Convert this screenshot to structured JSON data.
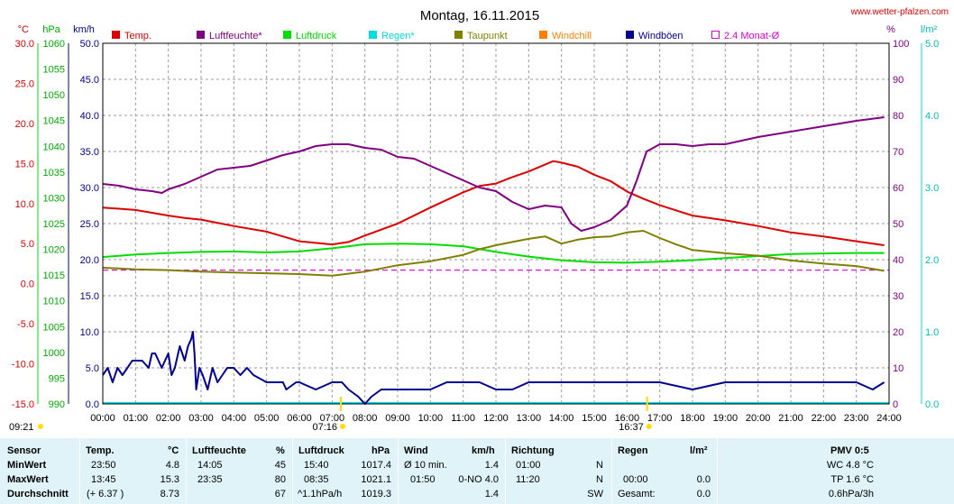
{
  "title": "Montag, 16.11.2015",
  "website": "www.wetter-pfalzen.com",
  "axis_units": {
    "temp": "°C",
    "pressure": "hPa",
    "wind": "km/h",
    "humidity": "%",
    "rain": "l/m²"
  },
  "axes": {
    "temp_ticks": [
      "30.0",
      "25.0",
      "20.0",
      "15.0",
      "10.0",
      "5.0",
      "0.0",
      "-5.0",
      "-10.0",
      "-15.0"
    ],
    "pressure_ticks": [
      "1060",
      "1055",
      "1050",
      "1045",
      "1040",
      "1035",
      "1030",
      "1025",
      "1020",
      "1015",
      "1010",
      "1005",
      "1000",
      "995",
      "990"
    ],
    "wind_ticks": [
      "50.0",
      "45.0",
      "40.0",
      "35.0",
      "30.0",
      "25.0",
      "20.0",
      "15.0",
      "10.0",
      "5.0",
      "0.0"
    ],
    "humidity_ticks": [
      "100",
      "90",
      "80",
      "70",
      "60",
      "50",
      "40",
      "30",
      "20",
      "10",
      "0"
    ],
    "rain_ticks": [
      "5.0",
      "4.0",
      "3.0",
      "2.0",
      "1.0",
      "0.0"
    ],
    "time_ticks": [
      "00:00",
      "01:00",
      "02:00",
      "03:00",
      "04:00",
      "05:00",
      "06:00",
      "07:00",
      "08:00",
      "09:00",
      "10:00",
      "11:00",
      "12:00",
      "13:00",
      "14:00",
      "15:00",
      "16:00",
      "17:00",
      "18:00",
      "19:00",
      "20:00",
      "21:00",
      "22:00",
      "23:00",
      "24:00"
    ]
  },
  "sun": {
    "moonrise": "09:21",
    "sunrise": "07:16",
    "sunset": "16:37"
  },
  "colors": {
    "temp": "#dd0000",
    "humidity": "#800080",
    "pressure": "#00dd00",
    "rain": "#00dddd",
    "dewpoint": "#808000",
    "windchill": "#ff8000",
    "gust": "#000090",
    "avg": "#dd00dd",
    "summary_bg": "#dff3f8"
  },
  "legend": [
    {
      "label": "Temp.",
      "color": "#dd0000",
      "type": "box"
    },
    {
      "label": "Luftfeuchte*",
      "color": "#800080",
      "type": "box"
    },
    {
      "label": "Luftdruck",
      "color": "#00dd00",
      "type": "box"
    },
    {
      "label": "Regen*",
      "color": "#00dddd",
      "type": "box"
    },
    {
      "label": "Taupunkt",
      "color": "#808000",
      "type": "box"
    },
    {
      "label": "Windchill",
      "color": "#ff8000",
      "type": "box"
    },
    {
      "label": "Windböen",
      "color": "#000090",
      "type": "box"
    },
    {
      "label": "2.4 Monat-Ø",
      "color": "#dd00dd",
      "type": "outline"
    }
  ],
  "chart_data": {
    "type": "line",
    "title": "Montag, 16.11.2015",
    "x_unit": "hour of day",
    "xlim": [
      0,
      24
    ],
    "ylim": {
      "temp": [
        -15,
        30
      ],
      "pressure": [
        990,
        1060
      ],
      "wind": [
        0,
        50
      ],
      "humidity": [
        0,
        100
      ],
      "rain": [
        0,
        5
      ]
    },
    "grid": true,
    "series": [
      {
        "name": "Temp.",
        "axis": "temp",
        "color": "#dd0000",
        "x": [
          0,
          1,
          2,
          2.5,
          3,
          4,
          5,
          6,
          7,
          7.5,
          8,
          9,
          10,
          11,
          11.5,
          12,
          12.5,
          13,
          13.75,
          14,
          14.5,
          15,
          15.5,
          16,
          16.5,
          17,
          18,
          19,
          20,
          21,
          22,
          23,
          23.85
        ],
        "y": [
          9.5,
          9.2,
          8.5,
          8.2,
          8.0,
          7.2,
          6.5,
          5.3,
          4.9,
          5.2,
          6.0,
          7.5,
          9.5,
          11.4,
          12.2,
          12.5,
          13.3,
          14.0,
          15.3,
          15.1,
          14.6,
          13.6,
          12.8,
          11.5,
          10.6,
          9.8,
          8.5,
          7.9,
          7.2,
          6.4,
          5.9,
          5.3,
          4.8
        ]
      },
      {
        "name": "Luftfeuchte*",
        "axis": "humidity",
        "color": "#800080",
        "x": [
          0,
          0.5,
          1,
          1.5,
          1.8,
          2,
          2.5,
          3,
          3.5,
          4,
          4.5,
          5,
          5.5,
          6,
          6.5,
          7,
          7.5,
          8,
          8.5,
          9,
          9.5,
          10,
          10.5,
          11,
          11.5,
          12,
          12.5,
          13,
          13.5,
          14,
          14.3,
          14.6,
          15,
          15.5,
          16,
          16.3,
          16.6,
          17,
          17.5,
          18,
          18.5,
          19,
          20,
          21,
          22,
          23,
          23.85
        ],
        "y": [
          61,
          60.5,
          59.5,
          59,
          58.5,
          59.5,
          61,
          63,
          65,
          65.5,
          66,
          67.5,
          69,
          70,
          71.5,
          72,
          72,
          71,
          70.5,
          68.5,
          68,
          66,
          64,
          62,
          60,
          59,
          56,
          54,
          55,
          54.5,
          50,
          48,
          49,
          51,
          55,
          62,
          70,
          72,
          72,
          71.5,
          72,
          72,
          74,
          75.5,
          77,
          78.5,
          79.5
        ]
      },
      {
        "name": "Luftdruck",
        "axis": "pressure",
        "color": "#00dd00",
        "x": [
          0,
          1,
          2,
          3,
          4,
          5,
          6,
          7,
          8,
          9,
          10,
          11,
          12,
          13,
          14,
          15,
          16,
          17,
          18,
          19,
          20,
          21,
          22,
          23,
          23.85
        ],
        "y": [
          1018.5,
          1019.0,
          1019.3,
          1019.5,
          1019.6,
          1019.4,
          1019.6,
          1020.2,
          1021.0,
          1021.1,
          1021.0,
          1020.6,
          1019.5,
          1018.6,
          1017.9,
          1017.5,
          1017.4,
          1017.6,
          1017.9,
          1018.3,
          1018.7,
          1019.1,
          1019.2,
          1019.3,
          1019.3
        ]
      },
      {
        "name": "Taupunkt",
        "axis": "temp",
        "color": "#808000",
        "x": [
          0,
          1,
          2,
          3,
          4,
          5,
          6,
          7,
          8,
          9,
          10,
          11,
          11.5,
          12,
          12.5,
          13,
          13.5,
          14,
          14.5,
          15,
          15.5,
          16,
          16.5,
          17,
          17.5,
          18,
          19,
          20,
          21,
          22,
          23,
          23.85
        ],
        "y": [
          2.0,
          1.8,
          1.7,
          1.5,
          1.4,
          1.3,
          1.2,
          1.0,
          1.5,
          2.3,
          2.8,
          3.6,
          4.3,
          4.8,
          5.2,
          5.6,
          5.9,
          5.0,
          5.5,
          5.8,
          5.9,
          6.4,
          6.6,
          5.7,
          4.9,
          4.2,
          3.8,
          3.5,
          2.9,
          2.5,
          2.2,
          1.6
        ]
      },
      {
        "name": "Windböen",
        "axis": "wind",
        "color": "#000090",
        "x": [
          0,
          0.15,
          0.3,
          0.45,
          0.6,
          0.75,
          0.9,
          1.0,
          1.2,
          1.4,
          1.5,
          1.6,
          1.8,
          1.9,
          2.0,
          2.1,
          2.2,
          2.35,
          2.5,
          2.6,
          2.7,
          2.75,
          2.8,
          2.85,
          2.95,
          3.05,
          3.2,
          3.35,
          3.5,
          3.65,
          3.8,
          4.0,
          4.2,
          4.4,
          4.6,
          5.0,
          5.5,
          5.6,
          5.9,
          6.0,
          6.5,
          7.0,
          7.3,
          7.5,
          7.8,
          8.0,
          8.2,
          8.5,
          9.0,
          9.5,
          10.0,
          10.5,
          11.0,
          11.5,
          12.0,
          12.5,
          13.0,
          13.5,
          14.0,
          15.0,
          16.0,
          17.0,
          18.0,
          19.0,
          20.0,
          21.0,
          22.0,
          23.0,
          23.5,
          23.85
        ],
        "y": [
          4,
          5,
          3,
          5,
          4,
          5,
          6,
          6,
          6,
          5,
          7,
          7,
          5,
          6,
          7,
          4,
          5,
          8,
          6,
          8,
          9,
          10,
          7,
          2,
          5,
          4,
          2,
          5,
          3,
          4,
          5,
          5,
          4,
          5,
          4,
          3,
          3,
          2,
          3,
          3,
          2,
          3,
          3,
          2,
          1,
          0,
          1,
          2,
          2,
          2,
          2,
          3,
          3,
          3,
          2,
          2,
          3,
          3,
          3,
          3,
          3,
          3,
          2,
          3,
          3,
          3,
          3,
          3,
          2,
          3
        ]
      }
    ],
    "reference_lines": [
      {
        "name": "2.4 Monat-Ø",
        "axis": "temp",
        "value": 1.7,
        "style": "dashed",
        "color": "#dd00dd"
      }
    ]
  },
  "summary": {
    "headers": {
      "sensor": "Sensor",
      "temp": "Temp.",
      "temp_unit": "°C",
      "hum": "Luftfeuchte",
      "hum_unit": "%",
      "press": "Luftdruck",
      "press_unit": "hPa",
      "wind": "Wind",
      "wind_unit": "km/h",
      "dir": "Richtung",
      "rain": "Regen",
      "rain_unit": "l/m²",
      "pmv": "PMV 0:5"
    },
    "rows": [
      {
        "label": "MinWert",
        "temp_time": "23:50",
        "temp_val": "4.8",
        "hum_time": "14:05",
        "hum_val": "45",
        "press_time": "15:40",
        "press_val": "1017.4",
        "wind_a": "Ø 10 min.",
        "wind_val": "1.4",
        "dir_time": "01:00",
        "dir_val": "N",
        "rain_a": "",
        "rain_val": "",
        "pmv": "WC 4.8 °C"
      },
      {
        "label": "MaxWert",
        "temp_time": "13:45",
        "temp_val": "15.3",
        "hum_time": "23:35",
        "hum_val": "80",
        "press_time": "08:35",
        "press_val": "1021.1",
        "wind_a": "01:50",
        "wind_mid": "0-NO 4.0",
        "wind_val": "",
        "dir_time": "11:20",
        "dir_val": "N",
        "rain_a": "00:00",
        "rain_val": "0.0",
        "pmv": "TP 1.6 °C"
      },
      {
        "label": "Durchschnitt",
        "temp_time": "(+ 6.37 )",
        "temp_val": "8.73",
        "hum_time": "",
        "hum_val": "67",
        "press_time": "^1.1hPa/h",
        "press_val": "1019.3",
        "wind_a": "",
        "wind_val": "1.4",
        "dir_time": "",
        "dir_val": "SW",
        "rain_a": "Gesamt:",
        "rain_val": "0.0",
        "pmv": "0.6hPa/3h"
      }
    ]
  }
}
